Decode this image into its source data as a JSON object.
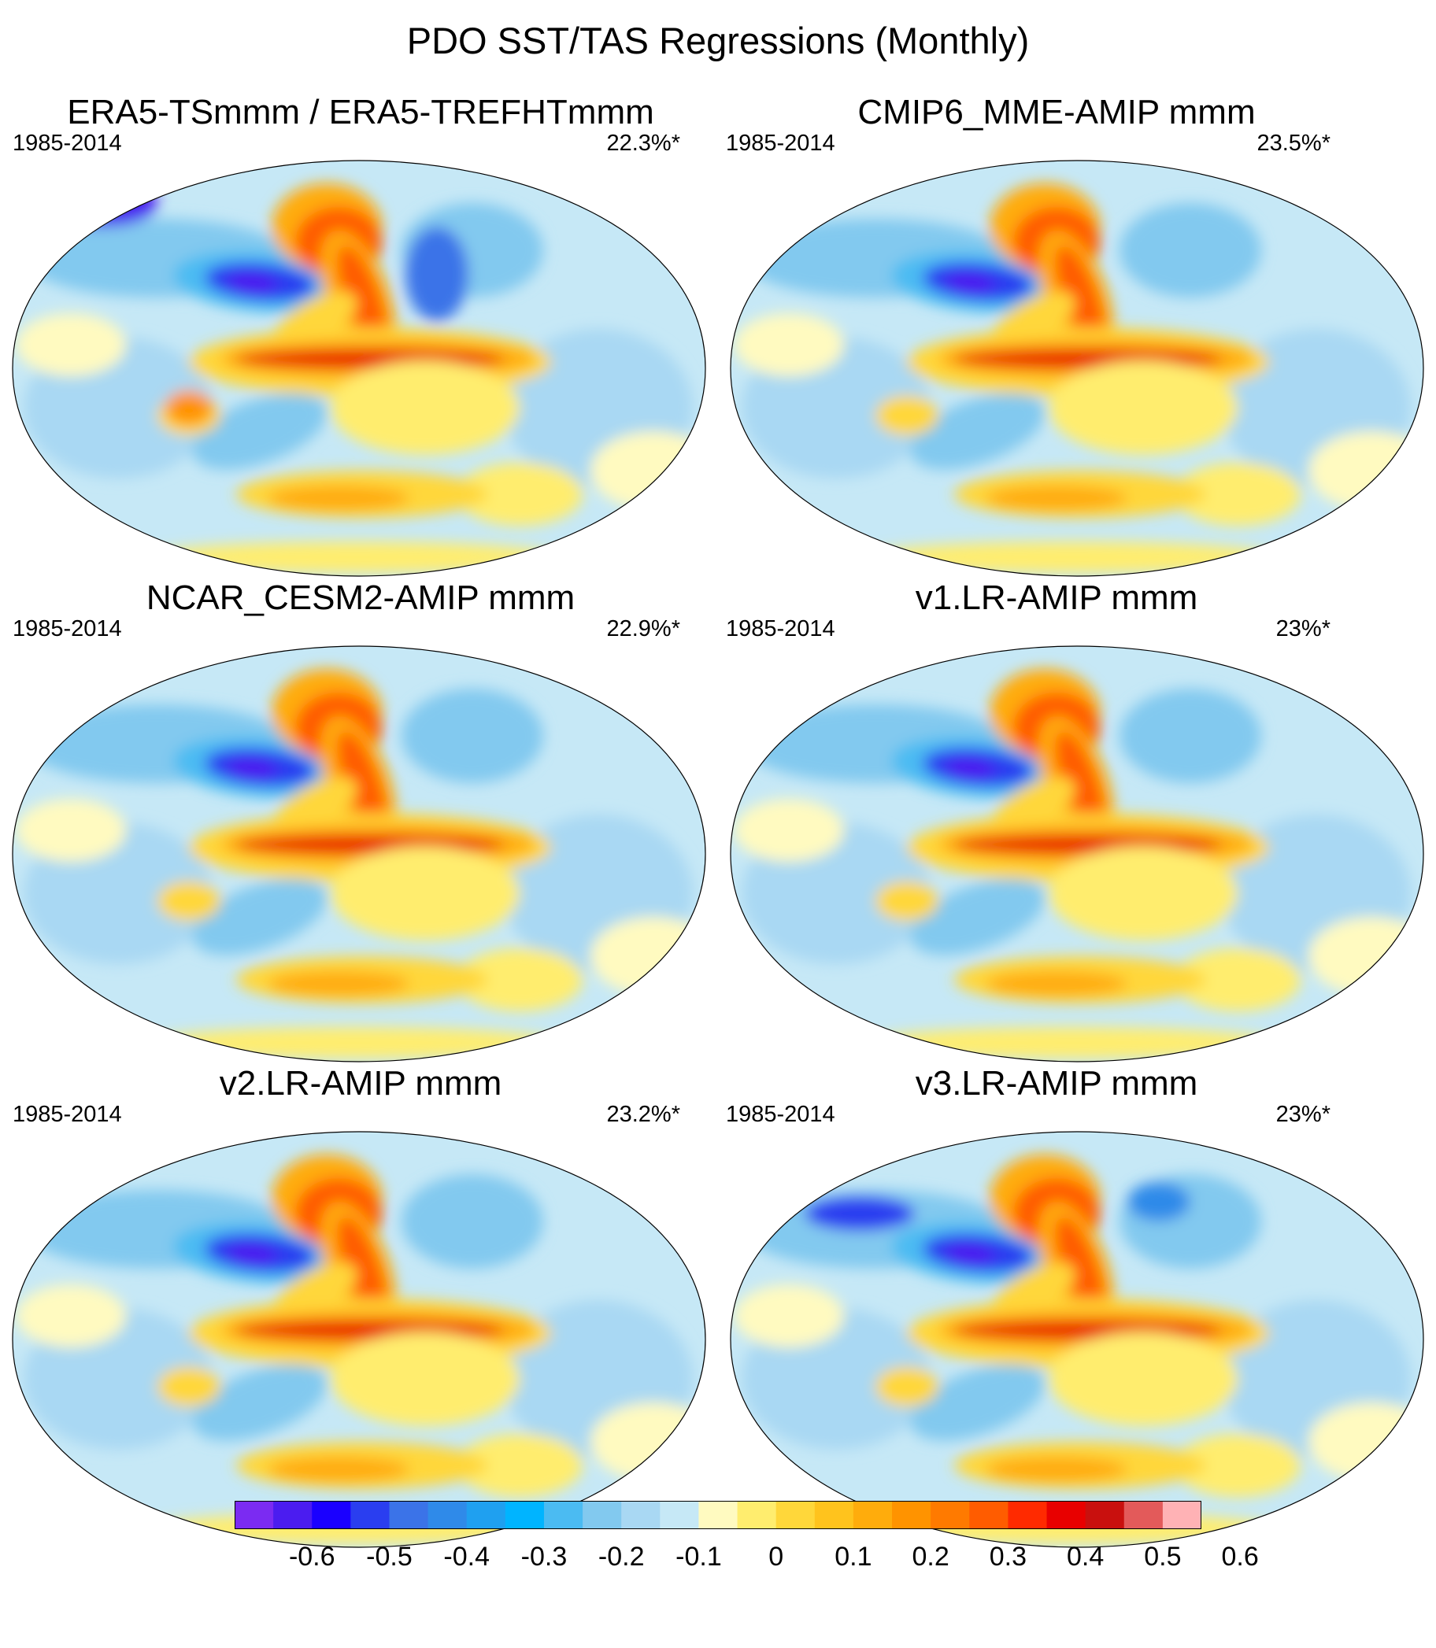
{
  "title": "PDO SST/TAS Regressions (Monthly)",
  "panels": [
    {
      "title": "ERA5-TSmmm / ERA5-TREFHTmmm",
      "period": "1985-2014",
      "percent": "22.3%*"
    },
    {
      "title": "CMIP6_MME-AMIP  mmm",
      "period": "1985-2014",
      "percent": "23.5%*"
    },
    {
      "title": "NCAR_CESM2-AMIP  mmm",
      "period": "1985-2014",
      "percent": "22.9%*"
    },
    {
      "title": "v1.LR-AMIP  mmm",
      "period": "1985-2014",
      "percent": "23%*"
    },
    {
      "title": "v2.LR-AMIP  mmm",
      "period": "1985-2014",
      "percent": "23.2%*"
    },
    {
      "title": "v3.LR-AMIP  mmm",
      "period": "1985-2014",
      "percent": "23%*"
    }
  ],
  "colorbar": {
    "colors": [
      "#7b2bf2",
      "#4b1cf0",
      "#1a00ff",
      "#2a3ef0",
      "#3b73e8",
      "#2f8ae9",
      "#1fa0f0",
      "#00b4ff",
      "#4bbbf2",
      "#82c9ef",
      "#a9d8f3",
      "#c6e8f6",
      "#fffac0",
      "#ffed6e",
      "#ffd73a",
      "#ffc31d",
      "#ffac0c",
      "#ff9300",
      "#ff7a00",
      "#ff5c00",
      "#ff2a00",
      "#e80000",
      "#c9100e",
      "#e35a5a",
      "#ffb2b5"
    ],
    "labels": [
      "-0.6",
      "-0.5",
      "-0.4",
      "-0.3",
      "-0.2",
      "-0.1",
      "0",
      "0.1",
      "0.2",
      "0.3",
      "0.4",
      "0.5",
      "0.6"
    ]
  }
}
